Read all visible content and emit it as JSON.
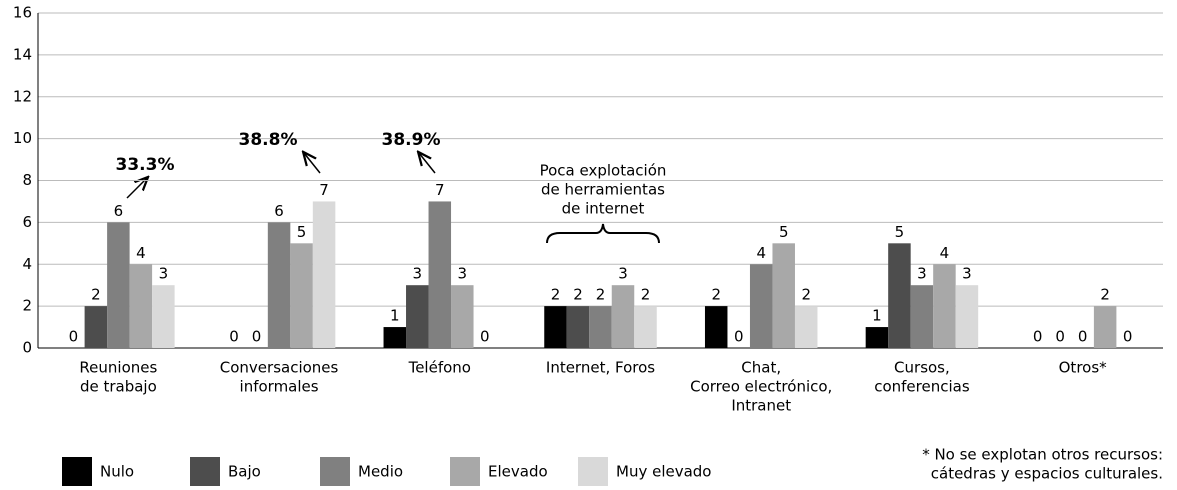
{
  "chart_data": {
    "type": "bar",
    "categories": [
      [
        "Reuniones",
        "de trabajo"
      ],
      [
        "Conversaciones",
        "informales"
      ],
      [
        "Teléfono"
      ],
      [
        "Internet, Foros"
      ],
      [
        "Chat,",
        "Correo electrónico,",
        "Intranet"
      ],
      [
        "Cursos,",
        "conferencias"
      ],
      [
        "Otros*"
      ]
    ],
    "series": [
      {
        "name": "Nulo",
        "color": "#000000",
        "values": [
          0,
          0,
          1,
          2,
          2,
          1,
          0
        ]
      },
      {
        "name": "Bajo",
        "color": "#4d4d4d",
        "values": [
          2,
          0,
          3,
          2,
          0,
          5,
          0
        ]
      },
      {
        "name": "Medio",
        "color": "#808080",
        "values": [
          6,
          6,
          7,
          2,
          4,
          3,
          0
        ]
      },
      {
        "name": "Elevado",
        "color": "#a8a8a8",
        "values": [
          4,
          5,
          3,
          3,
          5,
          4,
          2
        ]
      },
      {
        "name": "Muy elevado",
        "color": "#d9d9d9",
        "values": [
          3,
          7,
          0,
          2,
          2,
          3,
          0
        ]
      }
    ],
    "ylim": [
      0,
      16
    ],
    "yticks": [
      0,
      2,
      4,
      6,
      8,
      10,
      12,
      14,
      16
    ],
    "grid": true,
    "annotations": [
      "33.3%",
      "38.8%",
      "38.9%",
      [
        "Poca explotación",
        "de herramientas",
        "de internet"
      ]
    ],
    "footnote": [
      "* No se explotan otros recursos:",
      "cátedras y espacios culturales."
    ]
  }
}
